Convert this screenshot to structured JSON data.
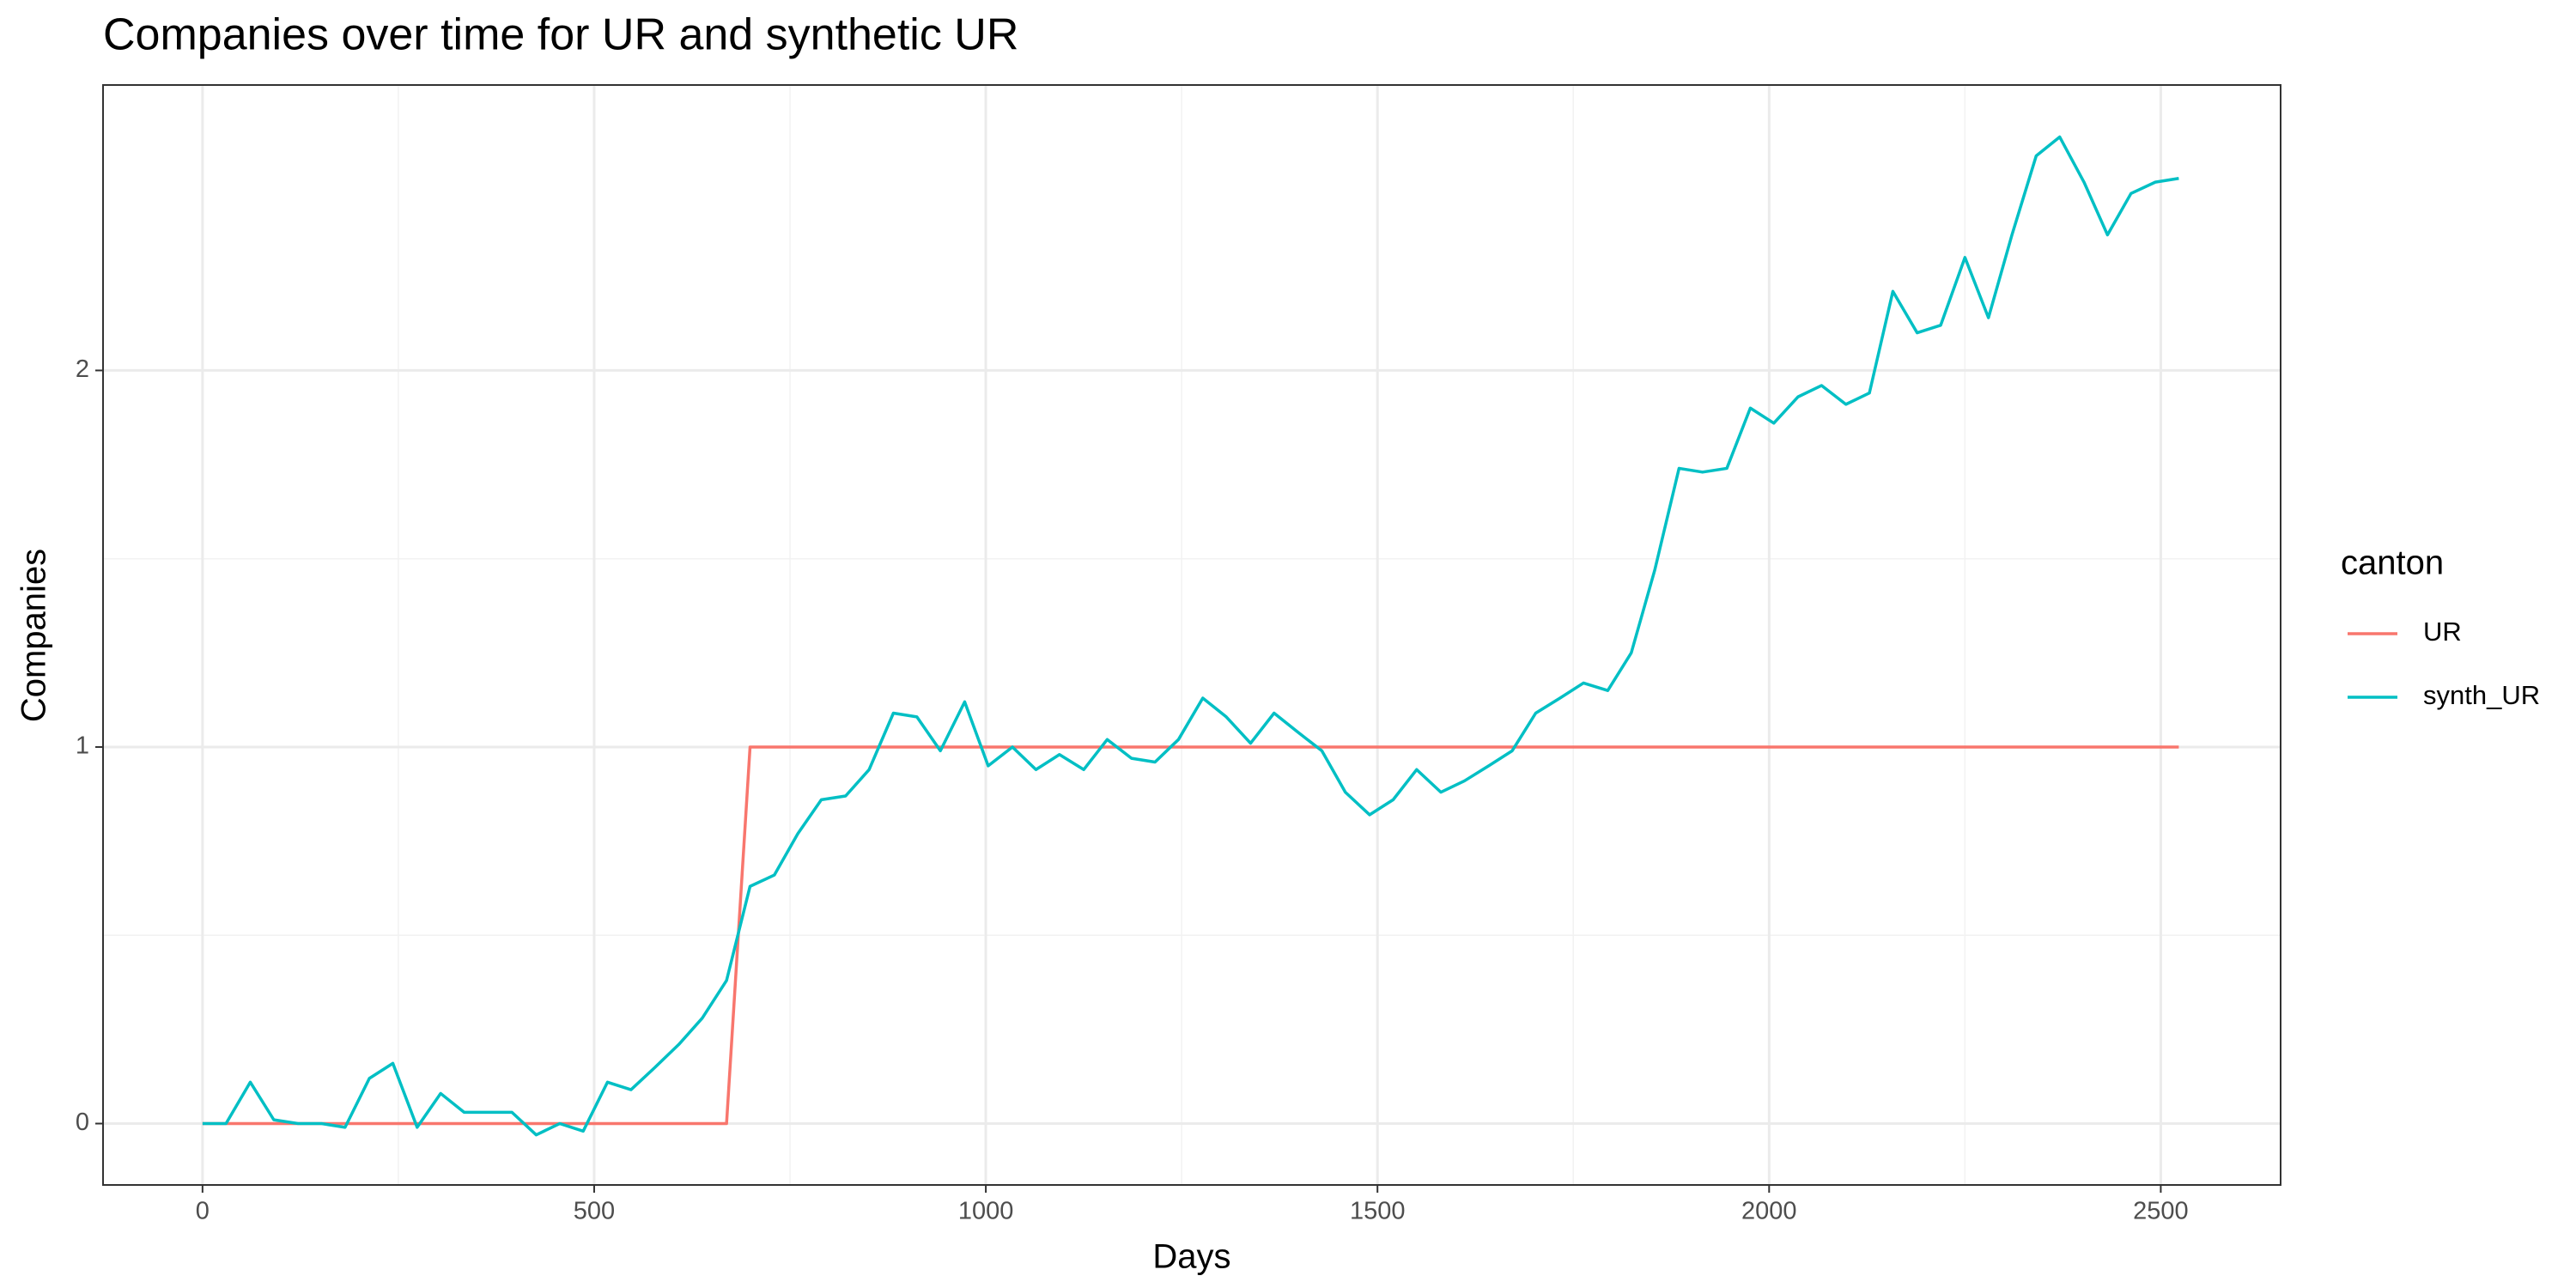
{
  "chart_data": {
    "type": "line",
    "title": "Companies over time for UR and synthetic UR",
    "x_label": "Days",
    "y_label": "Companies",
    "legend_title": "canton",
    "legend_position": "right",
    "grid": true,
    "x": [
      0,
      30,
      61,
      91,
      122,
      152,
      182,
      213,
      243,
      274,
      304,
      334,
      365,
      395,
      426,
      456,
      486,
      517,
      547,
      578,
      608,
      638,
      669,
      699,
      730,
      760,
      790,
      821,
      851,
      882,
      912,
      942,
      973,
      1003,
      1034,
      1064,
      1094,
      1125,
      1155,
      1186,
      1216,
      1246,
      1277,
      1307,
      1338,
      1368,
      1398,
      1429,
      1459,
      1490,
      1520,
      1550,
      1581,
      1611,
      1642,
      1672,
      1702,
      1733,
      1763,
      1794,
      1824,
      1854,
      1885,
      1915,
      1946,
      1976,
      2006,
      2037,
      2067,
      2098,
      2128,
      2158,
      2189,
      2219,
      2250,
      2280,
      2310,
      2341,
      2371,
      2402,
      2432,
      2462,
      2493,
      2523
    ],
    "series": [
      {
        "name": "UR",
        "color": "#F8766D",
        "values": [
          0,
          0,
          0,
          0,
          0,
          0,
          0,
          0,
          0,
          0,
          0,
          0,
          0,
          0,
          0,
          0,
          0,
          0,
          0,
          0,
          0,
          0,
          0,
          1,
          1,
          1,
          1,
          1,
          1,
          1,
          1,
          1,
          1,
          1,
          1,
          1,
          1,
          1,
          1,
          1,
          1,
          1,
          1,
          1,
          1,
          1,
          1,
          1,
          1,
          1,
          1,
          1,
          1,
          1,
          1,
          1,
          1,
          1,
          1,
          1,
          1,
          1,
          1,
          1,
          1,
          1,
          1,
          1,
          1,
          1,
          1,
          1,
          1,
          1,
          1,
          1,
          1,
          1,
          1,
          1,
          1,
          1,
          1,
          1
        ]
      },
      {
        "name": "synth_UR",
        "color": "#00BFC4",
        "values": [
          0,
          0,
          0.11,
          0.01,
          0,
          0,
          -0.01,
          0.12,
          0.16,
          -0.01,
          0.08,
          0.03,
          0.03,
          0.03,
          -0.03,
          0,
          -0.02,
          0.11,
          0.09,
          0.15,
          0.21,
          0.28,
          0.38,
          0.63,
          0.66,
          0.77,
          0.86,
          0.87,
          0.94,
          1.09,
          1.08,
          0.99,
          1.12,
          0.95,
          1.0,
          0.94,
          0.98,
          0.94,
          1.02,
          0.97,
          0.96,
          1.02,
          1.13,
          1.08,
          1.01,
          1.09,
          1.04,
          0.99,
          0.88,
          0.82,
          0.86,
          0.94,
          0.88,
          0.91,
          0.95,
          0.99,
          1.09,
          1.13,
          1.17,
          1.15,
          1.25,
          1.47,
          1.74,
          1.73,
          1.74,
          1.9,
          1.86,
          1.93,
          1.96,
          1.91,
          1.94,
          2.21,
          2.1,
          2.12,
          2.3,
          2.14,
          2.36,
          2.57,
          2.62,
          2.5,
          2.36,
          2.47,
          2.5,
          2.51
        ]
      }
    ],
    "xlim": [
      -127,
      2653
    ],
    "xticks": [
      0,
      500,
      1000,
      1500,
      2000,
      2500
    ],
    "ylim": [
      -0.163,
      2.758
    ],
    "yticks": [
      0,
      1,
      2
    ]
  }
}
